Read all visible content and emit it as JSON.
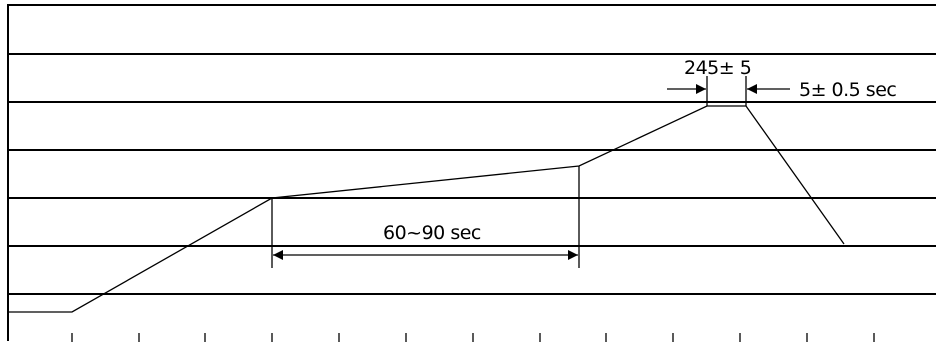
{
  "labels": {
    "soak_time": "60~90 sec",
    "peak_temperature": "245± 5",
    "peak_time": "5± 0.5 sec"
  },
  "colors": {
    "line": "#000000",
    "background": "#ffffff"
  }
}
